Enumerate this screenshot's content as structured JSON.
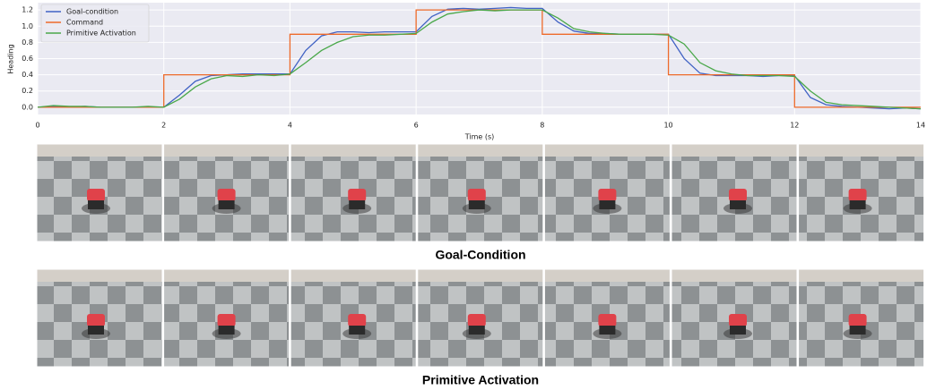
{
  "chart_data": {
    "type": "line",
    "x_label": "Time (s)",
    "y_label": "Heading",
    "x": [
      0,
      0.25,
      0.5,
      0.75,
      1,
      1.25,
      1.5,
      1.75,
      2,
      2.25,
      2.5,
      2.75,
      3,
      3.25,
      3.5,
      3.75,
      4,
      4.25,
      4.5,
      4.75,
      5,
      5.25,
      5.5,
      5.75,
      6,
      6.25,
      6.5,
      6.75,
      7,
      7.25,
      7.5,
      7.75,
      8,
      8.25,
      8.5,
      8.75,
      9,
      9.25,
      9.5,
      9.75,
      10,
      10.25,
      10.5,
      10.75,
      11,
      11.25,
      11.5,
      11.75,
      12,
      12.25,
      12.5,
      12.75,
      13,
      13.25,
      13.5,
      13.75,
      14
    ],
    "series": [
      {
        "name": "Goal-condition",
        "color": "#4062c4",
        "values": [
          0,
          0.01,
          0,
          0.01,
          0,
          0,
          0,
          0,
          0,
          0.15,
          0.32,
          0.39,
          0.4,
          0.41,
          0.41,
          0.41,
          0.41,
          0.7,
          0.88,
          0.93,
          0.93,
          0.92,
          0.93,
          0.93,
          0.93,
          1.12,
          1.21,
          1.22,
          1.21,
          1.22,
          1.23,
          1.22,
          1.22,
          1.05,
          0.94,
          0.91,
          0.91,
          0.9,
          0.9,
          0.9,
          0.9,
          0.6,
          0.42,
          0.39,
          0.39,
          0.39,
          0.38,
          0.39,
          0.39,
          0.12,
          0.03,
          0.01,
          0,
          -0.01,
          -0.02,
          -0.01,
          -0.02
        ]
      },
      {
        "name": "Command",
        "color": "#ee6a2a",
        "x": [
          0,
          2,
          2,
          4,
          4,
          6,
          6,
          8,
          8,
          10,
          10,
          12,
          12,
          14
        ],
        "values": [
          0,
          0,
          0.4,
          0.4,
          0.9,
          0.9,
          1.2,
          1.2,
          0.9,
          0.9,
          0.4,
          0.4,
          0,
          0
        ]
      },
      {
        "name": "Primitive Activation",
        "color": "#4aa84a",
        "values": [
          0,
          0.02,
          0.01,
          0.01,
          0,
          0,
          0,
          0.01,
          0,
          0.1,
          0.25,
          0.35,
          0.39,
          0.38,
          0.4,
          0.39,
          0.41,
          0.55,
          0.7,
          0.8,
          0.87,
          0.89,
          0.89,
          0.9,
          0.91,
          1.05,
          1.15,
          1.18,
          1.2,
          1.19,
          1.2,
          1.2,
          1.2,
          1.1,
          0.97,
          0.93,
          0.91,
          0.9,
          0.9,
          0.9,
          0.89,
          0.78,
          0.55,
          0.45,
          0.41,
          0.39,
          0.39,
          0.39,
          0.38,
          0.2,
          0.06,
          0.03,
          0.02,
          0.01,
          0,
          -0.01,
          -0.02
        ]
      }
    ],
    "xlim": [
      0,
      14
    ],
    "xticks": [
      0,
      2,
      4,
      6,
      8,
      10,
      12,
      14
    ],
    "ylim": [
      -0.09,
      1.29
    ],
    "yticks": [
      {
        "value": 0,
        "label": "0.0"
      },
      0.2,
      0.4,
      0.6,
      0.8,
      {
        "value": 1,
        "label": "1.0"
      },
      1.2
    ],
    "grid": true,
    "legend": "upper-left"
  },
  "figure_rows": [
    {
      "caption": "Goal-Condition"
    },
    {
      "caption": "Primitive Activation"
    }
  ]
}
